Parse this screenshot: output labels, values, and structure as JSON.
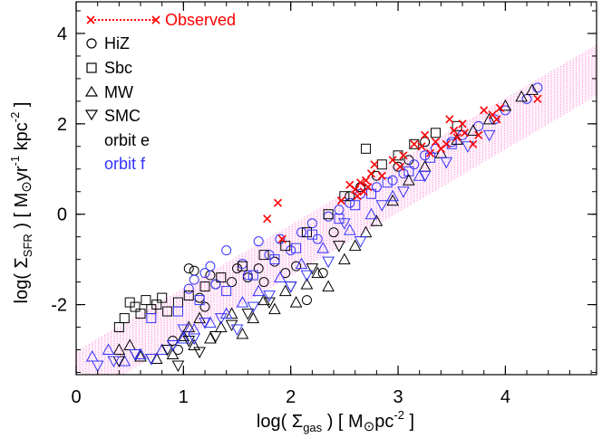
{
  "chart_data": {
    "type": "scatter",
    "title": "",
    "xlabel": {
      "prefix": "log( Σ",
      "sub": "gas",
      "suffix": " )  [ M",
      "sun": "⊙",
      "unit": "pc",
      "exp": "-2",
      "close": " ]"
    },
    "ylabel": {
      "prefix": "log( Σ",
      "sub": "SFR",
      "suffix": " )  [ M",
      "sun": "⊙",
      "unit1": "yr",
      "exp1": "-1",
      "unit2": " kpc",
      "exp2": "-2",
      "close": " ]"
    },
    "xlim": [
      0,
      4.85
    ],
    "ylim": [
      -3.55,
      4.7
    ],
    "xticks": [
      0,
      1,
      2,
      3,
      4
    ],
    "yticks": [
      -2,
      0,
      2,
      4
    ],
    "xtick_labels": [
      "0",
      "1",
      "2",
      "3",
      "4"
    ],
    "ytick_labels": [
      "-2",
      "0",
      "2",
      "4"
    ],
    "grid": false,
    "legend_position": "top-left",
    "band": {
      "slope": 1.4,
      "intercept": -3.6,
      "halfwidth": 0.55
    },
    "legend": {
      "observed": "Observed",
      "hiz": "HiZ",
      "sbc": "Sbc",
      "mw": "MW",
      "smc": "SMC",
      "orbit_e": "orbit e",
      "orbit_f": "orbit f"
    },
    "colors": {
      "observed": "#ff0000",
      "orbit_e": "#000000",
      "orbit_f": "#3333ff",
      "band": "#ff66cc"
    },
    "observed": {
      "x": [
        1.78,
        1.88,
        1.92,
        2.47,
        2.55,
        2.6,
        2.62,
        2.65,
        2.68,
        2.7,
        2.72,
        2.75,
        2.78,
        2.85,
        2.95,
        3.02,
        3.05,
        3.15,
        3.22,
        3.25,
        3.3,
        3.35,
        3.4,
        3.45,
        3.48,
        3.52,
        3.55,
        3.6,
        3.62,
        3.7,
        3.75,
        3.8,
        3.88,
        3.92,
        3.95,
        4.3
      ],
      "y": [
        -0.1,
        0.25,
        -0.55,
        0.3,
        0.65,
        0.55,
        0.4,
        0.7,
        0.5,
        0.75,
        0.6,
        0.9,
        1.1,
        0.85,
        1.2,
        1.05,
        1.3,
        1.55,
        1.5,
        1.75,
        1.35,
        1.6,
        1.45,
        1.55,
        2.1,
        1.85,
        1.7,
        2.0,
        1.8,
        1.55,
        1.75,
        2.3,
        2.2,
        2.1,
        2.35,
        2.55
      ]
    },
    "series": [
      {
        "marker": "circle",
        "color": "orbit_e",
        "x": [
          0.9,
          0.95,
          1.05,
          1.1,
          1.15,
          1.2,
          1.25,
          1.3,
          1.45,
          1.5,
          1.6,
          1.7,
          1.75,
          1.85,
          1.95,
          2.05,
          2.15,
          2.3,
          2.4,
          2.55,
          2.65,
          2.8,
          3.0,
          3.1,
          3.25
        ],
        "y": [
          -2.8,
          -3.0,
          -1.2,
          -1.25,
          -1.85,
          -2.05,
          -1.35,
          -1.55,
          -1.5,
          -1.2,
          -1.4,
          -1.2,
          -1.5,
          -1.05,
          -1.3,
          -1.15,
          -1.9,
          -1.3,
          -0.4,
          0.4,
          0.6,
          0.85,
          1.05,
          1.2,
          1.6
        ]
      },
      {
        "marker": "circle",
        "color": "orbit_f",
        "x": [
          1.05,
          1.1,
          1.2,
          1.25,
          1.3,
          1.4,
          1.55,
          1.6,
          1.7,
          1.8,
          1.9,
          2.0,
          2.1,
          2.2,
          2.25,
          2.35,
          2.45,
          2.55,
          2.65,
          2.8,
          2.95,
          3.05,
          3.15,
          3.25,
          3.35,
          3.5,
          3.6,
          3.75,
          3.9,
          4.0,
          4.2,
          4.3
        ],
        "y": [
          -1.65,
          -1.45,
          -1.3,
          -1.15,
          -1.55,
          -0.8,
          -1.1,
          -1.35,
          -0.6,
          -0.9,
          -0.55,
          -0.8,
          -0.4,
          -0.2,
          -0.55,
          -0.05,
          0.1,
          0.25,
          0.45,
          0.6,
          0.75,
          0.9,
          1.1,
          1.3,
          1.45,
          1.6,
          1.75,
          1.95,
          2.1,
          2.3,
          2.55,
          2.8
        ]
      },
      {
        "marker": "square",
        "color": "orbit_e",
        "x": [
          0.4,
          0.45,
          0.5,
          0.55,
          0.6,
          0.65,
          0.7,
          0.75,
          0.8,
          0.85,
          0.95,
          1.05,
          1.2,
          1.35,
          1.55,
          1.75,
          1.95,
          2.15,
          2.35,
          2.5,
          2.7,
          2.85,
          3.0,
          3.15,
          3.35,
          3.55
        ],
        "y": [
          -2.5,
          -2.3,
          -1.95,
          -2.05,
          -2.2,
          -1.9,
          -2.1,
          -2.0,
          -1.85,
          -2.15,
          -1.95,
          -1.8,
          -1.6,
          -1.4,
          -1.15,
          -0.9,
          -0.7,
          -0.4,
          0.0,
          0.4,
          1.45,
          1.1,
          1.3,
          1.55,
          1.8,
          1.95
        ]
      },
      {
        "marker": "square",
        "color": "orbit_f",
        "x": [
          0.7,
          0.95,
          1.15,
          1.4,
          1.65,
          1.85,
          2.05,
          2.2,
          2.45,
          2.6,
          2.75,
          2.9,
          3.1,
          3.3,
          3.5
        ],
        "y": [
          -2.3,
          -2.15,
          -1.9,
          -1.7,
          -1.35,
          -1.0,
          -0.75,
          -0.45,
          -0.1,
          0.2,
          0.45,
          0.7,
          0.95,
          1.25,
          1.55
        ]
      },
      {
        "marker": "triangle",
        "color": "orbit_e",
        "x": [
          0.4,
          0.5,
          0.6,
          0.75,
          0.9,
          1.0,
          1.05,
          1.1,
          1.15,
          1.25,
          1.35,
          1.45,
          1.55,
          1.65,
          1.75,
          1.85,
          1.95,
          2.05,
          2.15,
          2.25,
          2.35,
          2.5,
          2.6,
          2.7,
          2.8,
          2.95,
          3.1,
          3.25,
          3.4,
          3.55,
          3.7,
          3.85,
          4.0,
          4.15,
          4.25
        ],
        "y": [
          -3.0,
          -2.9,
          -3.15,
          -3.2,
          -3.1,
          -2.7,
          -2.5,
          -2.9,
          -2.3,
          -2.75,
          -2.5,
          -2.2,
          -2.65,
          -2.3,
          -1.9,
          -2.1,
          -1.7,
          -1.95,
          -1.55,
          -1.3,
          -1.6,
          -1.0,
          -0.7,
          -0.4,
          -0.15,
          0.3,
          0.75,
          1.05,
          1.35,
          1.65,
          1.85,
          2.1,
          2.4,
          2.6,
          2.75
        ]
      },
      {
        "marker": "triangle",
        "color": "orbit_f",
        "x": [
          0.15,
          0.3,
          0.45,
          0.6,
          0.8,
          1.0,
          1.1,
          1.25,
          1.4,
          1.55,
          1.7,
          1.9,
          2.1,
          2.3,
          2.55,
          2.75,
          2.95,
          3.2
        ],
        "y": [
          -3.15,
          -3.0,
          -3.25,
          -3.1,
          -3.0,
          -2.75,
          -2.55,
          -2.4,
          -2.2,
          -1.95,
          -1.7,
          -1.4,
          -1.1,
          -0.75,
          -0.35,
          0.0,
          0.4,
          0.85
        ]
      },
      {
        "marker": "triangle-down",
        "color": "orbit_e",
        "x": [
          0.4,
          0.55,
          0.7,
          0.85,
          0.95,
          1.05,
          1.15,
          1.3,
          1.45,
          1.6,
          1.8,
          2.0,
          2.2,
          2.45
        ],
        "y": [
          -3.25,
          -3.1,
          -3.2,
          -3.0,
          -3.35,
          -2.8,
          -3.05,
          -2.7,
          -2.45,
          -2.2,
          -1.95,
          -1.6,
          -1.2,
          -0.7
        ]
      },
      {
        "marker": "triangle-down",
        "color": "orbit_f",
        "x": [
          0.2,
          0.35,
          0.55,
          0.7,
          0.9,
          1.0,
          1.1,
          1.2,
          1.35,
          1.5,
          1.65,
          1.8,
          2.0,
          2.15,
          2.35,
          2.5,
          2.65,
          2.85,
          3.05,
          3.25,
          3.45,
          3.65,
          3.85
        ],
        "y": [
          -3.35,
          -3.25,
          -3.1,
          -3.2,
          -2.9,
          -2.55,
          -2.75,
          -2.4,
          -2.3,
          -2.55,
          -2.05,
          -1.8,
          -1.6,
          -1.35,
          -1.05,
          -0.2,
          -0.6,
          0.2,
          0.5,
          0.85,
          1.15,
          1.5,
          1.75
        ]
      }
    ]
  }
}
